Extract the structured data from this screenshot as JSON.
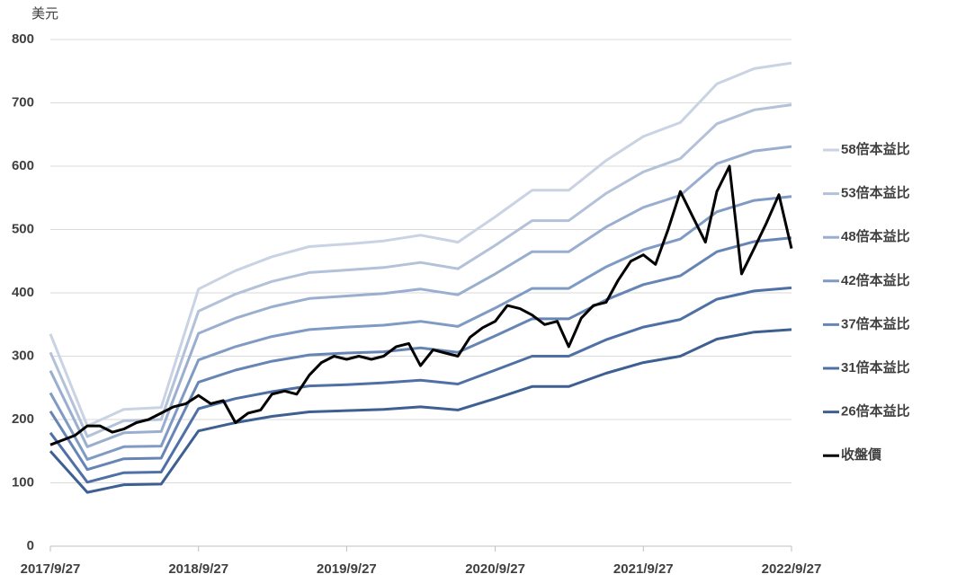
{
  "chart_data": {
    "type": "line",
    "y_label": "美元",
    "ylim": [
      0,
      800
    ],
    "yticks": [
      0,
      100,
      200,
      300,
      400,
      500,
      600,
      700,
      800
    ],
    "grid": true,
    "xlim": [
      "2017/9/27",
      "2022/9/27"
    ],
    "xticks": [
      "2017/9/27",
      "2018/9/27",
      "2019/9/27",
      "2020/9/27",
      "2021/9/27",
      "2022/9/27"
    ],
    "legend": "right",
    "series": [
      {
        "name": "58倍本益比",
        "color": "#c9d3e3",
        "x": [
          "2017/9/27",
          "2017/12/27",
          "2018/3/27",
          "2018/6/27",
          "2018/9/27",
          "2018/12/27",
          "2019/3/27",
          "2019/6/27",
          "2019/9/27",
          "2019/12/27",
          "2020/3/27",
          "2020/6/27",
          "2020/9/27",
          "2020/12/27",
          "2021/3/27",
          "2021/6/27",
          "2021/9/27",
          "2021/12/27",
          "2022/3/27",
          "2022/6/27",
          "2022/9/27"
        ],
        "values": [
          335,
          190,
          216,
          219,
          406,
          435,
          457,
          473,
          477,
          482,
          491,
          480,
          520,
          562,
          562,
          609,
          647,
          669,
          730,
          754,
          763
        ]
      },
      {
        "name": "53倍本益比",
        "color": "#b3c1d9",
        "x": [
          "2017/9/27",
          "2017/12/27",
          "2018/3/27",
          "2018/6/27",
          "2018/9/27",
          "2018/12/27",
          "2019/3/27",
          "2019/6/27",
          "2019/9/27",
          "2019/12/27",
          "2020/3/27",
          "2020/6/27",
          "2020/9/27",
          "2020/12/27",
          "2021/3/27",
          "2021/6/27",
          "2021/9/27",
          "2021/12/27",
          "2022/3/27",
          "2022/6/27",
          "2022/9/27"
        ],
        "values": [
          306,
          173,
          198,
          200,
          371,
          398,
          418,
          432,
          436,
          440,
          448,
          438,
          475,
          514,
          514,
          557,
          591,
          612,
          667,
          689,
          697
        ]
      },
      {
        "name": "48倍本益比",
        "color": "#9aafcf",
        "x": [
          "2017/9/27",
          "2017/12/27",
          "2018/3/27",
          "2018/6/27",
          "2018/9/27",
          "2018/12/27",
          "2019/3/27",
          "2019/6/27",
          "2019/9/27",
          "2019/12/27",
          "2020/3/27",
          "2020/6/27",
          "2020/9/27",
          "2020/12/27",
          "2021/3/27",
          "2021/6/27",
          "2021/9/27",
          "2021/12/27",
          "2022/3/27",
          "2022/6/27",
          "2022/9/27"
        ],
        "values": [
          277,
          157,
          179,
          181,
          336,
          360,
          378,
          391,
          395,
          399,
          406,
          397,
          430,
          465,
          465,
          504,
          535,
          554,
          604,
          624,
          631
        ]
      },
      {
        "name": "42倍本益比",
        "color": "#7f9bc4",
        "x": [
          "2017/9/27",
          "2017/12/27",
          "2018/3/27",
          "2018/6/27",
          "2018/9/27",
          "2018/12/27",
          "2019/3/27",
          "2019/6/27",
          "2019/9/27",
          "2019/12/27",
          "2020/3/27",
          "2020/6/27",
          "2020/9/27",
          "2020/12/27",
          "2021/3/27",
          "2021/6/27",
          "2021/9/27",
          "2021/12/27",
          "2022/3/27",
          "2022/6/27",
          "2022/9/27"
        ],
        "values": [
          242,
          137,
          157,
          158,
          294,
          315,
          331,
          342,
          346,
          349,
          355,
          347,
          376,
          407,
          407,
          441,
          468,
          485,
          528,
          546,
          552
        ]
      },
      {
        "name": "37倍本益比",
        "color": "#6685b5",
        "x": [
          "2017/9/27",
          "2017/12/27",
          "2018/3/27",
          "2018/6/27",
          "2018/9/27",
          "2018/12/27",
          "2019/3/27",
          "2019/6/27",
          "2019/9/27",
          "2019/12/27",
          "2020/3/27",
          "2020/6/27",
          "2020/9/27",
          "2020/12/27",
          "2021/3/27",
          "2021/6/27",
          "2021/9/27",
          "2021/12/27",
          "2022/3/27",
          "2022/6/27",
          "2022/9/27"
        ],
        "values": [
          213,
          121,
          138,
          139,
          259,
          278,
          292,
          302,
          305,
          307,
          313,
          306,
          332,
          359,
          359,
          389,
          413,
          427,
          465,
          481,
          487
        ]
      },
      {
        "name": "31倍本益比",
        "color": "#4f70a5",
        "x": [
          "2017/9/27",
          "2017/12/27",
          "2018/3/27",
          "2018/6/27",
          "2018/9/27",
          "2018/12/27",
          "2019/3/27",
          "2019/6/27",
          "2019/9/27",
          "2019/12/27",
          "2020/3/27",
          "2020/6/27",
          "2020/9/27",
          "2020/12/27",
          "2021/3/27",
          "2021/6/27",
          "2021/9/27",
          "2021/12/27",
          "2022/3/27",
          "2022/6/27",
          "2022/9/27"
        ],
        "values": [
          179,
          101,
          116,
          117,
          217,
          233,
          244,
          253,
          255,
          258,
          262,
          256,
          278,
          300,
          300,
          326,
          346,
          358,
          390,
          403,
          408
        ]
      },
      {
        "name": "26倍本益比",
        "color": "#3e5f92",
        "x": [
          "2017/9/27",
          "2017/12/27",
          "2018/3/27",
          "2018/6/27",
          "2018/9/27",
          "2018/12/27",
          "2019/3/27",
          "2019/6/27",
          "2019/9/27",
          "2019/12/27",
          "2020/3/27",
          "2020/6/27",
          "2020/9/27",
          "2020/12/27",
          "2021/3/27",
          "2021/6/27",
          "2021/9/27",
          "2021/12/27",
          "2022/3/27",
          "2022/6/27",
          "2022/9/27"
        ],
        "values": [
          150,
          85,
          97,
          98,
          182,
          195,
          205,
          212,
          214,
          216,
          220,
          215,
          233,
          252,
          252,
          273,
          290,
          300,
          327,
          338,
          342
        ]
      },
      {
        "name": "收盤價",
        "color": "#000000",
        "x": [
          "2017/9/27",
          "2017/11/27",
          "2017/12/27",
          "2018/1/27",
          "2018/2/27",
          "2018/3/27",
          "2018/4/27",
          "2018/5/27",
          "2018/6/27",
          "2018/7/27",
          "2018/8/27",
          "2018/9/27",
          "2018/10/27",
          "2018/11/27",
          "2018/12/27",
          "2019/1/27",
          "2019/2/27",
          "2019/3/27",
          "2019/4/27",
          "2019/5/27",
          "2019/6/27",
          "2019/7/27",
          "2019/8/27",
          "2019/9/27",
          "2019/10/27",
          "2019/11/27",
          "2019/12/27",
          "2020/1/27",
          "2020/2/27",
          "2020/3/27",
          "2020/4/27",
          "2020/5/27",
          "2020/6/27",
          "2020/7/27",
          "2020/8/27",
          "2020/9/27",
          "2020/10/27",
          "2020/11/27",
          "2020/12/27",
          "2021/1/27",
          "2021/2/27",
          "2021/3/27",
          "2021/4/27",
          "2021/5/27",
          "2021/6/27",
          "2021/7/27",
          "2021/8/27",
          "2021/9/27",
          "2021/10/27",
          "2021/11/27",
          "2021/12/27",
          "2022/1/27",
          "2022/2/27",
          "2022/3/27",
          "2022/4/27",
          "2022/5/27",
          "2022/6/27",
          "2022/7/27",
          "2022/8/27",
          "2022/9/27"
        ],
        "values": [
          160,
          175,
          190,
          190,
          180,
          185,
          195,
          200,
          210,
          220,
          225,
          238,
          225,
          230,
          195,
          210,
          215,
          240,
          245,
          240,
          270,
          290,
          300,
          295,
          300,
          295,
          300,
          315,
          320,
          285,
          310,
          305,
          300,
          330,
          345,
          355,
          380,
          375,
          365,
          350,
          355,
          315,
          360,
          380,
          385,
          420,
          450,
          460,
          445,
          500,
          560,
          520,
          480,
          560,
          600,
          430,
          470,
          510,
          555,
          470
        ]
      }
    ]
  }
}
